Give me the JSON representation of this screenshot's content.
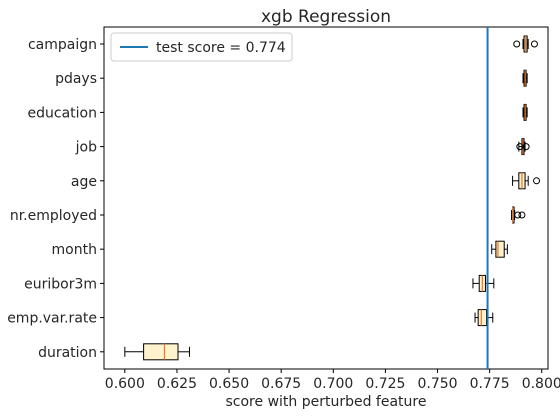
{
  "chart_data": {
    "type": "boxplot",
    "title": "xgb Regression",
    "xlabel": "score with perturbed feature",
    "ylabel": "",
    "xlim": [
      0.59,
      0.803
    ],
    "xticks": [
      0.6,
      0.625,
      0.65,
      0.675,
      0.7,
      0.725,
      0.75,
      0.775,
      0.8
    ],
    "xtick_labels": [
      "0.600",
      "0.625",
      "0.650",
      "0.675",
      "0.700",
      "0.725",
      "0.750",
      "0.775",
      "0.800"
    ],
    "grid": false,
    "legend_position": "top-left",
    "reference_line": {
      "label": "test score = 0.774",
      "value": 0.774,
      "color": "#1f77b4"
    },
    "box_color": "#fff2cc",
    "median_color": "#e6772b",
    "categories": [
      "campaign",
      "pdays",
      "education",
      "job",
      "age",
      "nr.employed",
      "month",
      "euribor3m",
      "emp.var.rate",
      "duration"
    ],
    "boxes": [
      {
        "name": "campaign",
        "whisker_low": 0.791,
        "q1": 0.7915,
        "median": 0.7923,
        "q3": 0.793,
        "whisker_high": 0.7935,
        "outliers": [
          0.788,
          0.7965
        ]
      },
      {
        "name": "pdays",
        "whisker_low": 0.791,
        "q1": 0.7915,
        "median": 0.792,
        "q3": 0.7925,
        "whisker_high": 0.793,
        "outliers": []
      },
      {
        "name": "education",
        "whisker_low": 0.791,
        "q1": 0.7915,
        "median": 0.792,
        "q3": 0.7925,
        "whisker_high": 0.793,
        "outliers": []
      },
      {
        "name": "job",
        "whisker_low": 0.789,
        "q1": 0.7905,
        "median": 0.791,
        "q3": 0.7915,
        "whisker_high": 0.792,
        "outliers": [
          0.7895,
          0.7925
        ]
      },
      {
        "name": "age",
        "whisker_low": 0.786,
        "q1": 0.789,
        "median": 0.7905,
        "q3": 0.792,
        "whisker_high": 0.7935,
        "outliers": [
          0.7975
        ]
      },
      {
        "name": "nr.employed",
        "whisker_low": 0.7855,
        "q1": 0.786,
        "median": 0.786,
        "q3": 0.7865,
        "whisker_high": 0.787,
        "outliers": [
          0.7885,
          0.7905
        ]
      },
      {
        "name": "month",
        "whisker_low": 0.776,
        "q1": 0.778,
        "median": 0.779,
        "q3": 0.782,
        "whisker_high": 0.7835,
        "outliers": []
      },
      {
        "name": "euribor3m",
        "whisker_low": 0.767,
        "q1": 0.77,
        "median": 0.7715,
        "q3": 0.773,
        "whisker_high": 0.777,
        "outliers": []
      },
      {
        "name": "emp.var.rate",
        "whisker_low": 0.768,
        "q1": 0.7695,
        "median": 0.771,
        "q3": 0.7735,
        "whisker_high": 0.7765,
        "outliers": []
      },
      {
        "name": "duration",
        "whisker_low": 0.6,
        "q1": 0.609,
        "median": 0.619,
        "q3": 0.6255,
        "whisker_high": 0.631,
        "outliers": []
      }
    ]
  }
}
